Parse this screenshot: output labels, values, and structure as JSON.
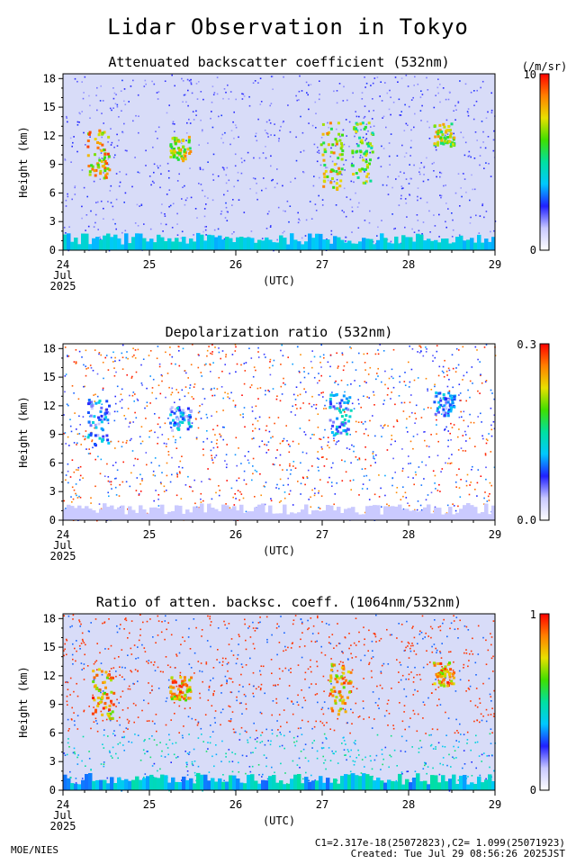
{
  "main_title": "Lidar Observation in Tokyo",
  "footer": {
    "left": "MOE/NIES",
    "calibration": "C1=2.317e-18(25072823),C2= 1.099(25071923)",
    "created": "Created: Tue Jul 29 08:56:26 2025JST"
  },
  "colors": {
    "background": "#d8dcf8",
    "colorbar_stops": [
      "#ffffff",
      "#c8c8ff",
      "#2020ff",
      "#00c8ff",
      "#00e0a0",
      "#40e000",
      "#e8e000",
      "#ff8000",
      "#ff0000"
    ]
  },
  "chart_data": [
    {
      "type": "heatmap",
      "title": "Attenuated backscatter coefficient (532nm)",
      "ylabel": "Height (km)",
      "xlabel": "(UTC)",
      "x_ticks": [
        "24",
        "25",
        "26",
        "27",
        "28",
        "29"
      ],
      "x_tick_sub": [
        "Jul",
        "2025"
      ],
      "y_ticks": [
        "0",
        "3",
        "6",
        "9",
        "12",
        "15",
        "18"
      ],
      "ylim": [
        0,
        18.5
      ],
      "xlim": [
        24,
        29
      ],
      "colorbar": {
        "max": "10",
        "min": "0",
        "unit": "(/m/sr)"
      },
      "features": [
        {
          "day": 24.4,
          "h0": 7.5,
          "h1": 12.8,
          "level": 0.95
        },
        {
          "day": 25.35,
          "h0": 9.5,
          "h1": 12.0,
          "level": 0.9
        },
        {
          "day": 27.1,
          "h0": 6.5,
          "h1": 13.5,
          "level": 0.9
        },
        {
          "day": 27.45,
          "h0": 7.0,
          "h1": 13.5,
          "level": 0.8
        },
        {
          "day": 28.4,
          "h0": 11.0,
          "h1": 13.5,
          "level": 0.85
        }
      ]
    },
    {
      "type": "heatmap",
      "title": "Depolarization ratio (532nm)",
      "ylabel": "Height (km)",
      "xlabel": "(UTC)",
      "x_ticks": [
        "24",
        "25",
        "26",
        "27",
        "28",
        "29"
      ],
      "x_tick_sub": [
        "Jul",
        "2025"
      ],
      "y_ticks": [
        "0",
        "3",
        "6",
        "9",
        "12",
        "15",
        "18"
      ],
      "ylim": [
        0,
        18.5
      ],
      "xlim": [
        24,
        29
      ],
      "colorbar": {
        "max": "0.3",
        "min": "0.0",
        "unit": ""
      },
      "features": [
        {
          "day": 24.4,
          "h0": 8.0,
          "h1": 12.8,
          "level": 0.45
        },
        {
          "day": 25.35,
          "h0": 9.5,
          "h1": 12.0,
          "level": 0.45
        },
        {
          "day": 27.2,
          "h0": 9.0,
          "h1": 13.5,
          "level": 0.5
        },
        {
          "day": 28.4,
          "h0": 11.0,
          "h1": 13.5,
          "level": 0.45
        }
      ]
    },
    {
      "type": "heatmap",
      "title": "Ratio of atten. backsc. coeff. (1064nm/532nm)",
      "ylabel": "Height (km)",
      "xlabel": "(UTC)",
      "x_ticks": [
        "24",
        "25",
        "26",
        "27",
        "28",
        "29"
      ],
      "x_tick_sub": [
        "Jul",
        "2025"
      ],
      "y_ticks": [
        "0",
        "3",
        "6",
        "9",
        "12",
        "15",
        "18"
      ],
      "ylim": [
        0,
        18.5
      ],
      "xlim": [
        24,
        29
      ],
      "colorbar": {
        "max": "1",
        "min": "0",
        "unit": ""
      },
      "features": [
        {
          "day": 24.45,
          "h0": 7.5,
          "h1": 12.8,
          "level": 0.97
        },
        {
          "day": 25.35,
          "h0": 9.5,
          "h1": 12.0,
          "level": 0.97
        },
        {
          "day": 27.2,
          "h0": 8.0,
          "h1": 13.5,
          "level": 0.97
        },
        {
          "day": 28.4,
          "h0": 11.0,
          "h1": 13.5,
          "level": 0.97
        }
      ]
    }
  ]
}
